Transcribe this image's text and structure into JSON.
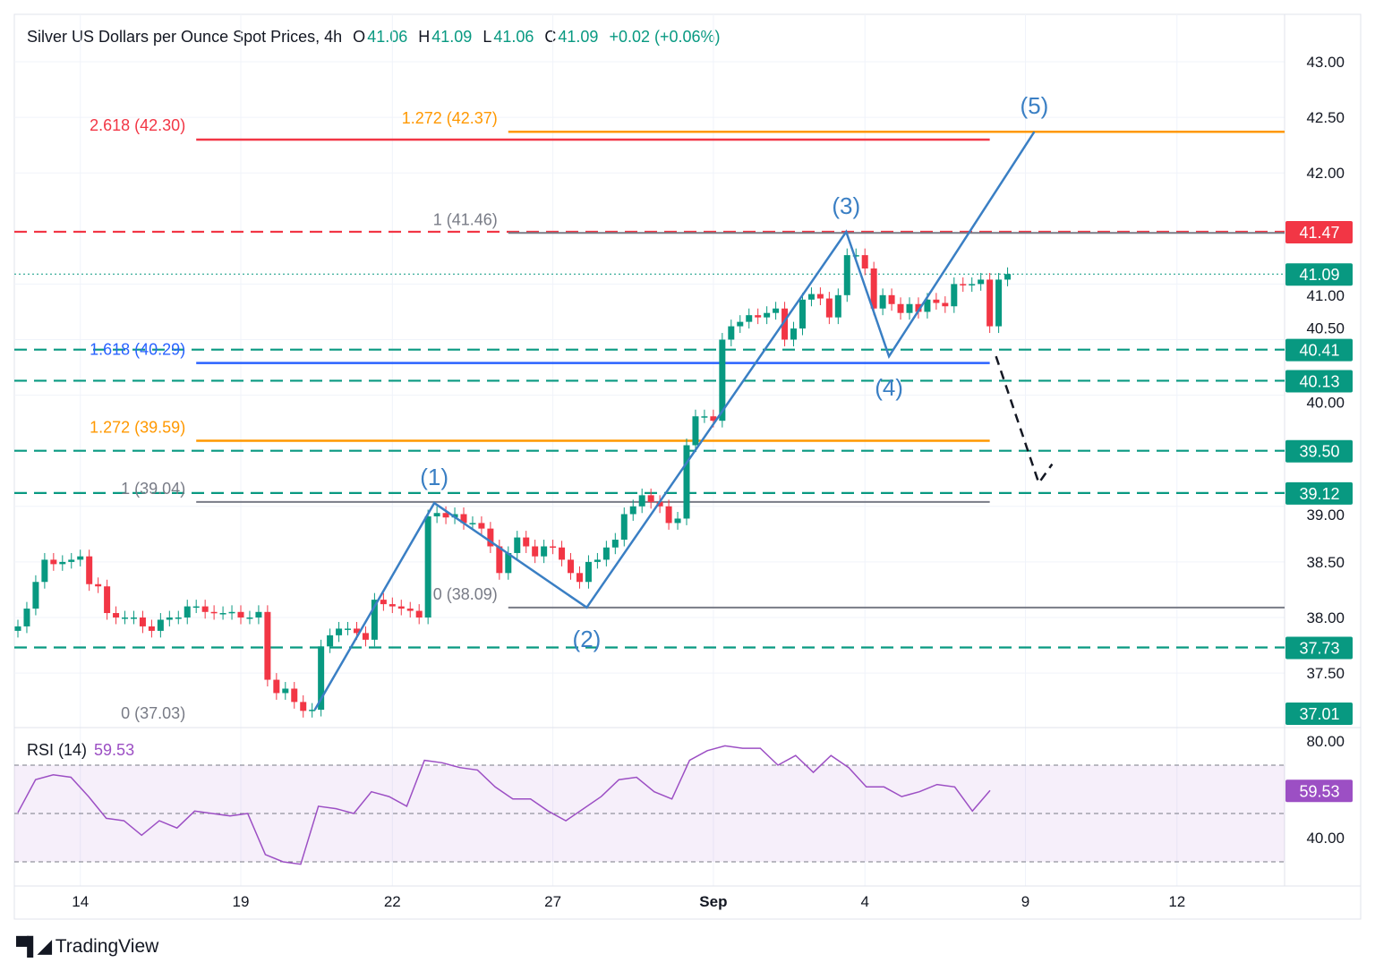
{
  "header": {
    "symbol": "Silver US Dollars per Ounce Spot Prices, 4h",
    "o_label": "O",
    "o": "41.06",
    "h_label": "H",
    "h": "41.09",
    "l_label": "L",
    "l": "41.06",
    "c_label": "C",
    "c": "41.09",
    "change": "+0.02 (+0.06%)"
  },
  "rsi_header": {
    "label": "RSI (14)",
    "value": "59.53"
  },
  "logo": {
    "text": "TradingView"
  },
  "colors": {
    "up": "#089981",
    "down": "#f23645",
    "fib_orange": "#ff9800",
    "fib_blue": "#2962ff",
    "fib_grey": "#787b86",
    "wave": "#3a7fc4",
    "rsi": "#9c4fc4"
  },
  "chart_data": {
    "type": "candlestick",
    "title": "Silver US Dollars per Ounce Spot Prices, 4h",
    "ylim": [
      36.9,
      43.2
    ],
    "price_ticks": [
      "43.00",
      "42.50",
      "42.00",
      "41.00",
      "40.50",
      "40.00",
      "39.00",
      "38.50",
      "38.00",
      "37.50"
    ],
    "price_tick_values": [
      43,
      42.5,
      42,
      41,
      40.5,
      40,
      39,
      38.5,
      38,
      37.5
    ],
    "time_ticks": [
      {
        "label": "14",
        "bar": 7
      },
      {
        "label": "19",
        "bar": 25
      },
      {
        "label": "22",
        "bar": 42
      },
      {
        "label": "27",
        "bar": 60
      },
      {
        "label": "Sep",
        "bar": 78,
        "bold": true
      },
      {
        "label": "4",
        "bar": 95
      },
      {
        "label": "9",
        "bar": 113
      },
      {
        "label": "12",
        "bar": 130
      }
    ],
    "closes": [
      37.92,
      38.08,
      38.32,
      38.52,
      38.48,
      38.5,
      38.52,
      38.55,
      38.3,
      38.28,
      38.04,
      38.0,
      38.0,
      38.0,
      37.92,
      37.88,
      37.98,
      38.0,
      38.0,
      38.1,
      38.1,
      38.05,
      38.04,
      38.04,
      38.05,
      38.0,
      38.0,
      38.05,
      37.44,
      37.32,
      37.36,
      37.24,
      37.16,
      37.17,
      37.74,
      37.84,
      37.9,
      37.9,
      37.86,
      37.8,
      38.16,
      38.12,
      38.1,
      38.08,
      38.06,
      38.0,
      38.91,
      38.94,
      38.9,
      38.93,
      38.85,
      38.85,
      38.8,
      38.64,
      38.4,
      38.58,
      38.72,
      38.64,
      38.55,
      38.64,
      38.63,
      38.52,
      38.4,
      38.32,
      38.5,
      38.52,
      38.63,
      38.7,
      38.93,
      39.0,
      39.1,
      39.04,
      39.0,
      38.85,
      38.89,
      39.55,
      39.81,
      39.81,
      39.77,
      40.5,
      40.62,
      40.66,
      40.72,
      40.7,
      40.74,
      40.78,
      40.5,
      40.6,
      40.86,
      40.91,
      40.87,
      40.7,
      40.9,
      41.26,
      41.26,
      41.14,
      40.78,
      40.9,
      40.82,
      40.74,
      40.82,
      40.75,
      40.86,
      40.83,
      40.8,
      41.0,
      40.99,
      41.0,
      41.04,
      40.62,
      41.04,
      41.09
    ],
    "horizontal_levels": [
      {
        "price": 41.47,
        "label": "41.47",
        "color": "#f23645",
        "style": "dashed"
      },
      {
        "price": 41.09,
        "label": "41.09",
        "color": "#089981",
        "style": "dotted"
      },
      {
        "price": 40.41,
        "label": "40.41",
        "color": "#089981",
        "style": "dashed"
      },
      {
        "price": 40.13,
        "label": "40.13",
        "color": "#089981",
        "style": "dashed"
      },
      {
        "price": 39.5,
        "label": "39.50",
        "color": "#089981",
        "style": "dashed"
      },
      {
        "price": 39.12,
        "label": "39.12",
        "color": "#089981",
        "style": "dashed"
      },
      {
        "price": 37.73,
        "label": "37.73",
        "color": "#089981",
        "style": "dashed"
      },
      {
        "price": 37.01,
        "label": "37.01",
        "color": "#089981",
        "style": "none"
      }
    ],
    "fib_levels": [
      {
        "label": "2.618 (42.30)",
        "price": 42.3,
        "color": "#f23645",
        "from_bar": 20,
        "to_bar": 109
      },
      {
        "label": "1.272 (42.37)",
        "price": 42.37,
        "color": "#ff9800",
        "from_bar": 55,
        "to_bar": null
      },
      {
        "label": "1 (41.46)",
        "price": 41.46,
        "color": "#787b86",
        "from_bar": 55,
        "to_bar": null
      },
      {
        "label": "1.618 (40.29)",
        "price": 40.29,
        "color": "#2962ff",
        "from_bar": 20,
        "to_bar": 109
      },
      {
        "label": "1.272 (39.59)",
        "price": 39.59,
        "color": "#ff9800",
        "from_bar": 20,
        "to_bar": 109
      },
      {
        "label": "1 (39.04)",
        "price": 39.04,
        "color": "#787b86",
        "from_bar": 20,
        "to_bar": 109
      },
      {
        "label": "0 (38.09)",
        "price": 38.09,
        "color": "#787b86",
        "from_bar": 55,
        "to_bar": null
      },
      {
        "label": "0 (37.03)",
        "price": 37.03,
        "color": "#787b86",
        "from_bar": 20,
        "to_bar": null,
        "no_line": true
      }
    ],
    "elliott_waves": [
      {
        "label": "",
        "bar": 33.3,
        "price": 37.17
      },
      {
        "label": "(1)",
        "bar": 46.7,
        "price": 39.03,
        "pos": "above"
      },
      {
        "label": "(2)",
        "bar": 63.8,
        "price": 38.09,
        "pos": "below"
      },
      {
        "label": "(3)",
        "bar": 92.9,
        "price": 41.47,
        "pos": "above"
      },
      {
        "label": "(4)",
        "bar": 97.7,
        "price": 40.35,
        "pos": "below"
      },
      {
        "label": "(5)",
        "bar": 114,
        "price": 42.37,
        "pos": "above"
      }
    ],
    "projection": [
      {
        "bar": 109.7,
        "price": 40.35
      },
      {
        "bar": 114.5,
        "price": 39.21
      },
      {
        "bar": 116,
        "price": 39.38
      }
    ],
    "rsi": {
      "label": "RSI (14)",
      "ylim": [
        25,
        85
      ],
      "ticks": [
        "80.00",
        "40.00"
      ],
      "tick_values": [
        80,
        40
      ],
      "bands": [
        70,
        50,
        30
      ],
      "current": "59.53",
      "values": [
        50.4,
        64,
        66,
        65,
        57,
        48,
        47,
        41,
        47,
        44,
        51,
        50,
        49,
        50,
        33,
        30,
        29,
        53,
        52,
        50,
        59,
        57,
        53,
        72,
        71,
        69,
        68,
        61,
        56,
        56,
        51,
        47,
        52,
        57,
        64,
        65,
        59,
        56,
        72,
        76,
        78,
        77,
        77,
        70,
        74,
        67,
        74,
        69,
        61,
        61,
        57,
        59,
        62,
        61,
        51,
        59.53
      ]
    }
  }
}
